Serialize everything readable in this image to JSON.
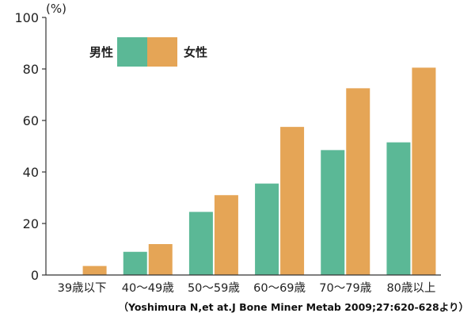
{
  "chart_data": {
    "type": "bar",
    "title": "",
    "xlabel": "",
    "ylabel": "",
    "unit": "(%)",
    "ylim": [
      0,
      100
    ],
    "yticks": [
      0,
      20,
      40,
      60,
      80,
      100
    ],
    "grid": false,
    "legend_position": "top-left",
    "categories": [
      "39歳以下",
      "40～49歳",
      "50～59歳",
      "60～69歳",
      "70～79歳",
      "80歳以上"
    ],
    "series": [
      {
        "name": "男性",
        "color": "#5bb896",
        "values": [
          0,
          9,
          24.5,
          35.5,
          48.5,
          51.5
        ]
      },
      {
        "name": "女性",
        "color": "#e5a556",
        "values": [
          3.5,
          12,
          31,
          57.5,
          72.5,
          80.5
        ]
      }
    ],
    "citation": "（Yoshimura N,et at.J Bone Miner Metab 2009;27:620-628より）"
  }
}
